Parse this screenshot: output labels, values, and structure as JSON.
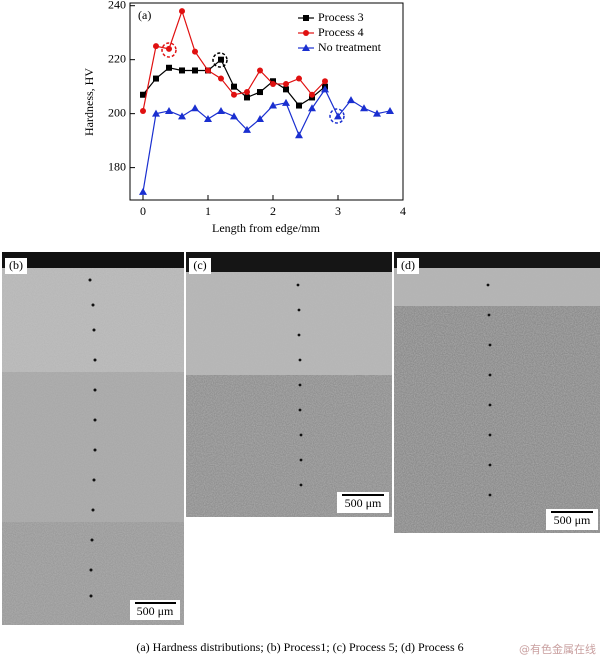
{
  "chart_data": {
    "type": "line",
    "panel_label": "(a)",
    "x_label": "Length from edge/mm",
    "y_label": "Hardness, HV",
    "xlim": [
      -0.2,
      4
    ],
    "ylim": [
      168,
      241
    ],
    "xticks": [
      0,
      1,
      2,
      3,
      4
    ],
    "yticks": [
      180,
      200,
      220,
      240
    ],
    "legend": "top-right",
    "series": [
      {
        "name": "Process 3",
        "color": "#000000",
        "marker": "square",
        "x": [
          0,
          0.2,
          0.4,
          0.6,
          0.8,
          1.0,
          1.2,
          1.4,
          1.6,
          1.8,
          2.0,
          2.2,
          2.4,
          2.6,
          2.8
        ],
        "values": [
          207,
          213,
          217,
          216,
          216,
          216,
          220,
          210,
          206,
          208,
          212,
          209,
          203,
          206,
          210
        ]
      },
      {
        "name": "Process 4",
        "color": "#e01010",
        "marker": "circle",
        "x": [
          0,
          0.2,
          0.4,
          0.6,
          0.8,
          1.0,
          1.2,
          1.4,
          1.6,
          1.8,
          2.0,
          2.2,
          2.4,
          2.6,
          2.8
        ],
        "values": [
          201,
          225,
          224,
          238,
          223,
          216,
          213,
          207,
          208,
          216,
          211,
          211,
          213,
          207,
          212
        ]
      },
      {
        "name": "No treatment",
        "color": "#1a2fd0",
        "marker": "triangle",
        "x": [
          0,
          0.2,
          0.4,
          0.6,
          0.8,
          1.0,
          1.2,
          1.4,
          1.6,
          1.8,
          2.0,
          2.2,
          2.4,
          2.6,
          2.8,
          3.0,
          3.2,
          3.4,
          3.6,
          3.8
        ],
        "values": [
          171,
          200,
          201,
          199,
          202,
          198,
          201,
          199,
          194,
          198,
          203,
          204,
          192,
          202,
          209,
          199,
          205,
          202,
          200,
          201
        ]
      }
    ]
  },
  "panels": [
    {
      "label": "(b)",
      "scale_bar": "500 μm"
    },
    {
      "label": "(c)",
      "scale_bar": "500 μm"
    },
    {
      "label": "(d)",
      "scale_bar": "500 μm"
    }
  ],
  "caption": "(a) Hardness distributions; (b) Process1; (c) Process 5; (d) Process 6",
  "watermark": "@有色金属在线"
}
